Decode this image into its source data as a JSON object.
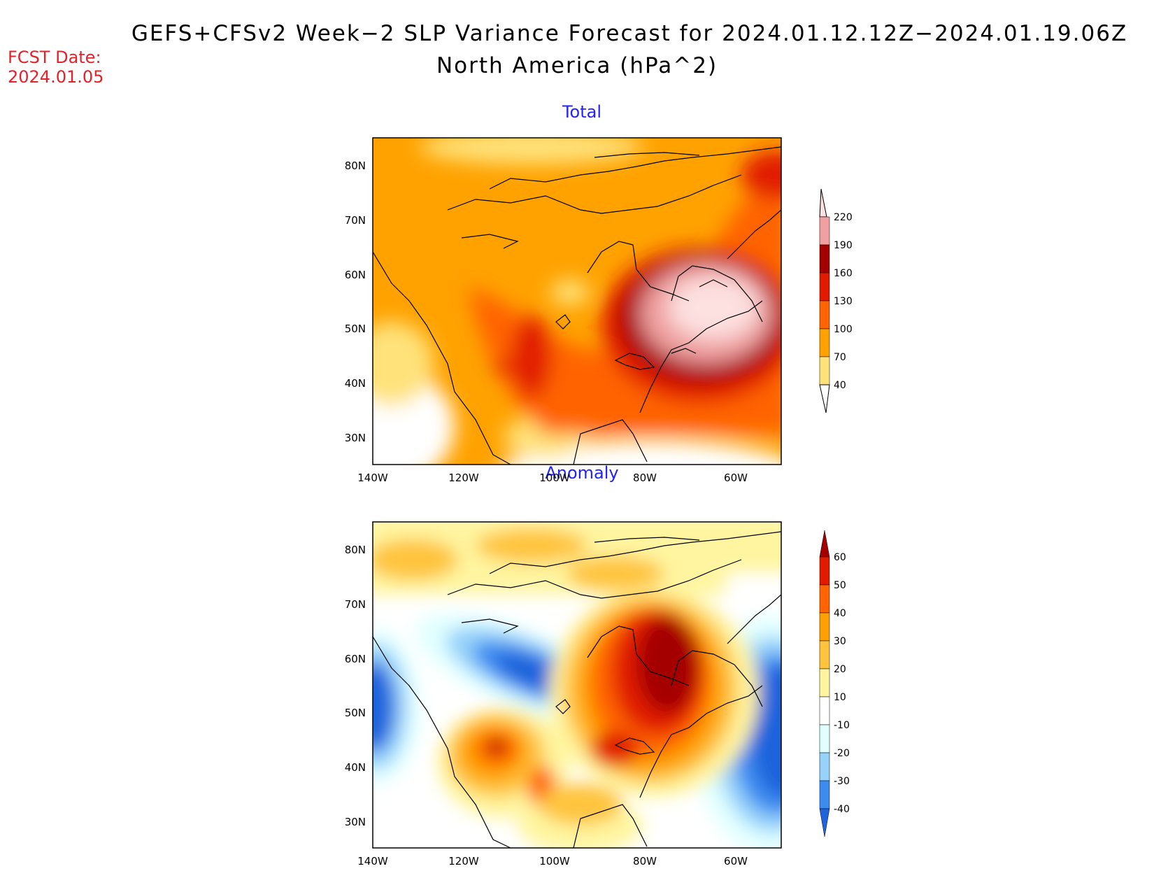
{
  "header": {
    "title_line1": "GEFS+CFSv2 Week−2 SLP Variance Forecast for 2024.01.12.12Z−2024.01.19.06Z",
    "title_line2": "North America (hPa^2)",
    "fcst_label": "FCST Date:",
    "fcst_value": "2024.01.05"
  },
  "map_extent": {
    "lon": [
      -140,
      -50
    ],
    "lat": [
      25,
      85
    ]
  },
  "lat_ticks": [
    "30N",
    "40N",
    "50N",
    "60N",
    "70N",
    "80N"
  ],
  "lon_ticks": [
    "140W",
    "120W",
    "100W",
    "80W",
    "60W"
  ],
  "panels": [
    {
      "title": "Total",
      "colorbar": {
        "levels": [
          "40",
          "70",
          "100",
          "130",
          "160",
          "190",
          "220"
        ],
        "colors": [
          "#ffe27a",
          "#ffa200",
          "#ff6400",
          "#e11a00",
          "#a50000",
          "#f0a0a0",
          "#fde0e0"
        ],
        "below_color": "#ffffff",
        "extend": "both"
      }
    },
    {
      "title": "Anomaly",
      "colorbar": {
        "levels": [
          "-40",
          "-30",
          "-20",
          "-10",
          "10",
          "20",
          "30",
          "40",
          "50",
          "60"
        ],
        "colors": [
          "#1e64dc",
          "#3c8cf0",
          "#96d2fa",
          "#e1ffff",
          "#ffffff",
          "#fff5a0",
          "#ffc43c",
          "#ffa000",
          "#ff6400",
          "#e11a00",
          "#a50000"
        ],
        "extend": "both"
      }
    }
  ],
  "colors": {
    "title_text": "#000000",
    "fcst_text": "#e8202a",
    "panel_title": "#2222ff"
  }
}
